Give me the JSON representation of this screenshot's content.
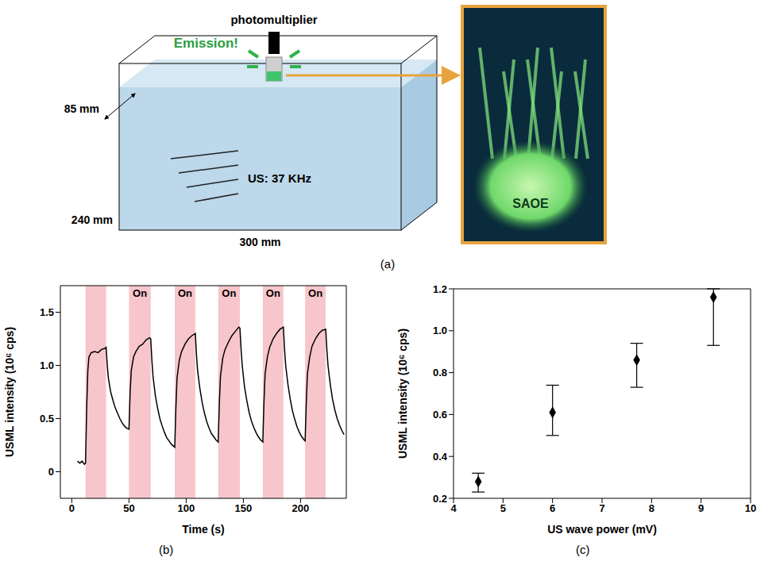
{
  "panel_a": {
    "panel_label": "(a)",
    "texts": {
      "sensor": "photomultiplier",
      "emission": "Emission!",
      "depth": "85 mm",
      "height": "240 mm",
      "width": "300 mm",
      "ultrasound": "US: 37 KHz",
      "sample": "SAOE"
    }
  },
  "chart_data": [
    {
      "type": "line",
      "panel_label": "(b)",
      "x_label": "Time (s)",
      "y_label": "USML intensity (10⁶ cps)",
      "xlim": [
        -10,
        240
      ],
      "xticks": [
        0,
        50,
        100,
        150,
        200
      ],
      "ylim": [
        -0.25,
        1.75
      ],
      "yticks": [
        0,
        0.5,
        {
          "value": 1,
          "label": "1.0"
        },
        1.5
      ],
      "color": "#000000",
      "line_style": "solid",
      "x": [
        5,
        7,
        9,
        11,
        12,
        13,
        14,
        15,
        17,
        20,
        23,
        26,
        29,
        30,
        31,
        32,
        34,
        36,
        38,
        40,
        42,
        44,
        46,
        48,
        50,
        51,
        52,
        54,
        56,
        59,
        62,
        65,
        68,
        69,
        70,
        71,
        73,
        75,
        77,
        79,
        81,
        83,
        85,
        87,
        89,
        90,
        91,
        92,
        94,
        96,
        99,
        102,
        105,
        108,
        109,
        110,
        112,
        114,
        116,
        118,
        120,
        122,
        124,
        126,
        128,
        129,
        130,
        132,
        134,
        137,
        140,
        143,
        146,
        147,
        148,
        149,
        151,
        153,
        155,
        157,
        159,
        161,
        163,
        165,
        167,
        168,
        169,
        171,
        173,
        176,
        179,
        182,
        185,
        186,
        187,
        189,
        191,
        193,
        195,
        197,
        199,
        201,
        203,
        204,
        205,
        206,
        208,
        210,
        213,
        216,
        219,
        222,
        223,
        224,
        226,
        228,
        230,
        232,
        234,
        236,
        238
      ],
      "values": [
        0.1,
        0.08,
        0.1,
        0.07,
        0.08,
        0.6,
        0.95,
        1.08,
        1.12,
        1.13,
        1.12,
        1.15,
        1.16,
        1.17,
        1.0,
        0.88,
        0.75,
        0.67,
        0.6,
        0.55,
        0.5,
        0.46,
        0.43,
        0.41,
        0.4,
        0.75,
        0.95,
        1.08,
        1.13,
        1.18,
        1.2,
        1.24,
        1.26,
        1.25,
        1.05,
        0.9,
        0.72,
        0.6,
        0.5,
        0.43,
        0.37,
        0.32,
        0.29,
        0.26,
        0.24,
        0.23,
        0.6,
        0.88,
        1.05,
        1.13,
        1.2,
        1.25,
        1.28,
        1.3,
        1.1,
        0.95,
        0.78,
        0.65,
        0.55,
        0.47,
        0.41,
        0.36,
        0.33,
        0.3,
        0.28,
        0.65,
        0.9,
        1.07,
        1.15,
        1.22,
        1.28,
        1.32,
        1.36,
        1.35,
        1.15,
        1.0,
        0.8,
        0.67,
        0.56,
        0.48,
        0.42,
        0.37,
        0.33,
        0.3,
        0.28,
        0.65,
        0.92,
        1.08,
        1.17,
        1.25,
        1.3,
        1.34,
        1.36,
        1.15,
        1.0,
        0.82,
        0.68,
        0.57,
        0.49,
        0.42,
        0.37,
        0.33,
        0.3,
        0.29,
        0.65,
        0.92,
        1.08,
        1.18,
        1.25,
        1.3,
        1.33,
        1.34,
        1.15,
        1.0,
        0.82,
        0.68,
        0.58,
        0.5,
        0.44,
        0.39,
        0.35
      ],
      "bands": [
        {
          "start": 12,
          "end": 30,
          "color": "#f7c6cb"
        },
        {
          "start": 50,
          "end": 69,
          "label": "On",
          "color": "#f7c6cb"
        },
        {
          "start": 90,
          "end": 108,
          "label": "On",
          "color": "#f7c6cb"
        },
        {
          "start": 128,
          "end": 147,
          "label": "On",
          "color": "#f7c6cb"
        },
        {
          "start": 167,
          "end": 185,
          "label": "On",
          "color": "#f7c6cb"
        },
        {
          "start": 204,
          "end": 222,
          "label": "On",
          "color": "#f7c6cb"
        }
      ]
    },
    {
      "type": "scatter",
      "panel_label": "(c)",
      "x_label": "US wave power (mV)",
      "y_label": "USML intensity (10⁶ cps)",
      "xlim": [
        4,
        10
      ],
      "xticks": [
        4,
        5,
        6,
        7,
        8,
        9,
        10
      ],
      "ylim": [
        0.2,
        1.2
      ],
      "yticks": [
        0.2,
        0.4,
        0.6,
        0.8,
        {
          "value": 1,
          "label": "1.0"
        },
        1.2
      ],
      "x": [
        4.5,
        6,
        7.7,
        9.25
      ],
      "values": [
        0.28,
        0.61,
        0.86,
        1.16
      ],
      "error_low": [
        0.23,
        0.5,
        0.73,
        0.93
      ],
      "error_high": [
        0.32,
        0.74,
        0.94,
        1.2
      ],
      "color": "#000000",
      "marker": "diamond"
    }
  ]
}
